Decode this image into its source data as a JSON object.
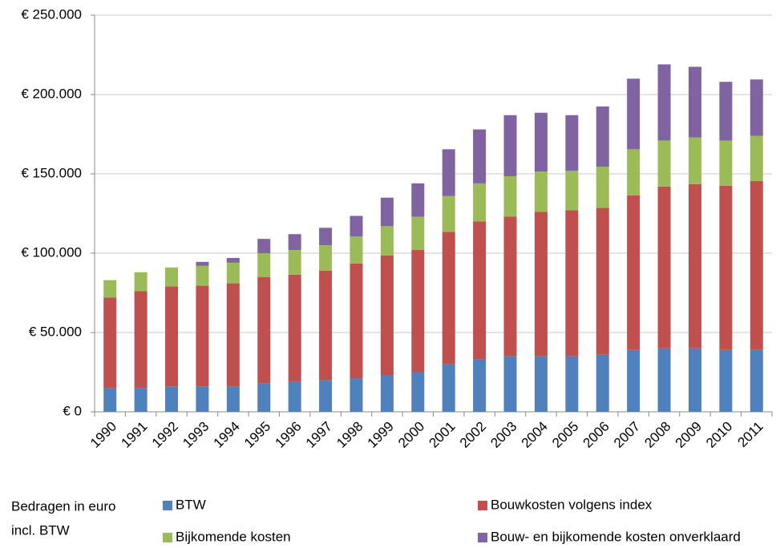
{
  "chart_data": {
    "type": "stacked-bar",
    "categories": [
      "1990",
      "1991",
      "1992",
      "1993",
      "1994",
      "1995",
      "1996",
      "1997",
      "1998",
      "1999",
      "2000",
      "2001",
      "2002",
      "2003",
      "2004",
      "2005",
      "2006",
      "2007",
      "2008",
      "2009",
      "2010",
      "2011"
    ],
    "series": [
      {
        "name": "BTW",
        "color": "#4f81bd",
        "values": [
          15000,
          15000,
          16000,
          16000,
          16000,
          18000,
          19000,
          20000,
          21000,
          23000,
          25000,
          30000,
          33000,
          35000,
          35000,
          35000,
          36000,
          39000,
          40000,
          40000,
          39000,
          39000
        ]
      },
      {
        "name": "Bouwkosten volgens index",
        "color": "#c0504d",
        "values": [
          57000,
          61000,
          63000,
          63500,
          65000,
          67000,
          67500,
          69000,
          72500,
          75500,
          77000,
          83500,
          87000,
          88000,
          91000,
          92000,
          92500,
          97500,
          102000,
          103500,
          103500,
          106500
        ]
      },
      {
        "name": "Bijkomende kosten",
        "color": "#9bbb59",
        "values": [
          11000,
          12000,
          12000,
          12500,
          13000,
          15000,
          15500,
          16000,
          17000,
          18500,
          21000,
          22500,
          24000,
          25500,
          25500,
          25000,
          26000,
          29000,
          29000,
          29500,
          28500,
          28500
        ]
      },
      {
        "name": "Bouw- en bijkomende kosten onverklaard",
        "color": "#8064a2",
        "values": [
          0,
          0,
          0,
          2500,
          3000,
          9000,
          10000,
          11000,
          13000,
          18000,
          21000,
          29500,
          34000,
          38500,
          37000,
          35000,
          38000,
          44500,
          48000,
          44500,
          37000,
          35500
        ]
      }
    ],
    "ylim": [
      0,
      250000
    ],
    "yticks": [
      {
        "value": 0,
        "label": "€ 0"
      },
      {
        "value": 50000,
        "label": "€ 50.000"
      },
      {
        "value": 100000,
        "label": "€ 100.000"
      },
      {
        "value": 150000,
        "label": "€ 150.000"
      },
      {
        "value": 200000,
        "label": "€ 200.000"
      },
      {
        "value": 250000,
        "label": "€ 250.000"
      }
    ],
    "grid": true,
    "legend_title": [
      "Bedragen  in euro",
      "incl. BTW"
    ]
  }
}
